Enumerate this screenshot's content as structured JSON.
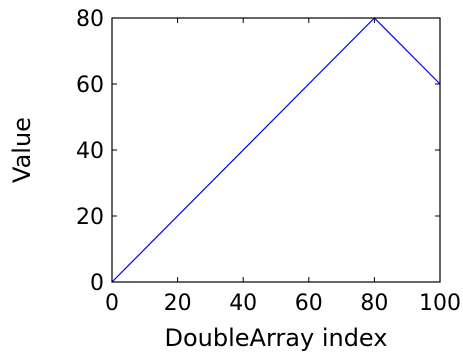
{
  "chart_data": {
    "type": "line",
    "xlabel": "DoubleArray index",
    "ylabel": "Value",
    "xlim": [
      0,
      100
    ],
    "ylim": [
      0,
      80
    ],
    "x_ticks": [
      0,
      20,
      40,
      60,
      80,
      100
    ],
    "y_ticks": [
      0,
      20,
      40,
      60,
      80
    ],
    "x_tick_labels": [
      "0",
      "20",
      "40",
      "60",
      "80",
      "100"
    ],
    "y_tick_labels": [
      "0",
      "20",
      "40",
      "60",
      "80"
    ],
    "grid": false,
    "series": [
      {
        "color": "#0000ff",
        "x": [
          0,
          80,
          100
        ],
        "y": [
          0,
          80,
          60
        ]
      }
    ]
  }
}
